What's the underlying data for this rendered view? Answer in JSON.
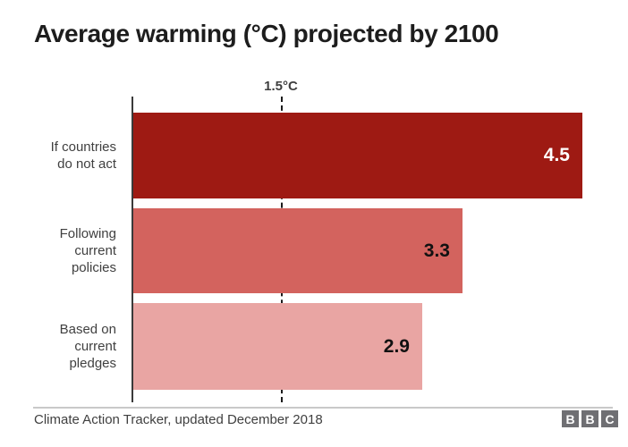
{
  "chart_data": {
    "type": "bar",
    "orientation": "horizontal",
    "title": "Average warming (°C) projected by 2100",
    "categories": [
      "If countries\ndo not act",
      "Following\ncurrent\npolicies",
      "Based on\ncurrent\npledges"
    ],
    "values": [
      4.5,
      3.3,
      2.9
    ],
    "value_labels": [
      "4.5",
      "3.3",
      "2.9"
    ],
    "colors": [
      "#9e1a13",
      "#d3635e",
      "#e9a5a3"
    ],
    "xlim": [
      0,
      4.95
    ],
    "reference_line": {
      "value": 1.5,
      "label": "1.5°C"
    },
    "xlabel": "",
    "ylabel": "",
    "grid": false,
    "legend": false
  },
  "footer": {
    "source": "Climate Action Tracker, updated December 2018",
    "logo": [
      "B",
      "B",
      "C"
    ]
  },
  "layout_colors": {
    "axis": "#3a3a3a",
    "reference_dash": "#1a1a1a",
    "separator": "#c9c9c9",
    "logo_block": "#6f6f73",
    "title_text": "#1d1d1d",
    "label_text": "#404040"
  }
}
